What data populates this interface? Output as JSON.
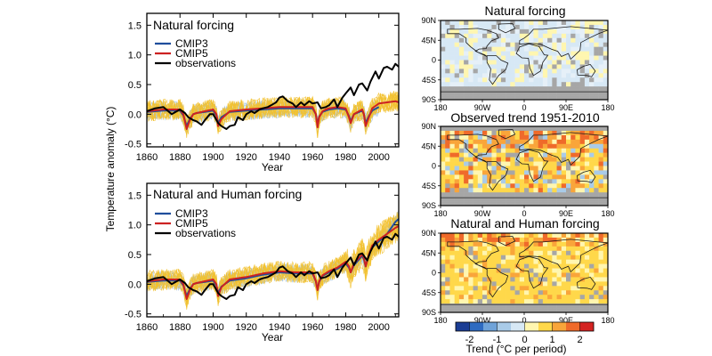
{
  "figure": {
    "colors": {
      "cmip3": "#1f4e9c",
      "cmip5": "#cc2222",
      "observations": "#000000",
      "cmip3_spread": "#a9c8e6",
      "cmip5_spread": "#f2c12e",
      "land_missing": "#a6a6a6",
      "ocean_missing": "#ffffff"
    }
  },
  "chart_data": [
    {
      "type": "line",
      "id": "natural",
      "title": "Natural forcing",
      "xlabel": "Year",
      "ylabel": "Temperature anomaly (°C)",
      "xlim": [
        1860,
        2012
      ],
      "ylim": [
        -0.55,
        1.7
      ],
      "xticks": [
        1860,
        1880,
        1900,
        1920,
        1940,
        1960,
        1980,
        2000
      ],
      "yticks": [
        -0.5,
        0.0,
        0.5,
        1.0,
        1.5
      ],
      "legend": [
        "CMIP3",
        "CMIP5",
        "observations"
      ],
      "series": [
        {
          "name": "observations",
          "x": [
            1860,
            1865,
            1870,
            1875,
            1880,
            1883,
            1885,
            1888,
            1890,
            1893,
            1895,
            1898,
            1900,
            1903,
            1905,
            1908,
            1910,
            1913,
            1915,
            1918,
            1920,
            1923,
            1925,
            1928,
            1930,
            1933,
            1935,
            1938,
            1940,
            1942,
            1945,
            1948,
            1950,
            1953,
            1955,
            1958,
            1960,
            1963,
            1965,
            1968,
            1970,
            1973,
            1975,
            1978,
            1980,
            1983,
            1985,
            1988,
            1990,
            1993,
            1995,
            1998,
            2000,
            2003,
            2005,
            2008,
            2010,
            2012
          ],
          "values": [
            0.05,
            0.1,
            0.12,
            0.0,
            0.08,
            0.02,
            -0.05,
            -0.1,
            -0.12,
            -0.18,
            -0.1,
            0.0,
            0.0,
            -0.15,
            -0.2,
            -0.25,
            -0.2,
            -0.18,
            -0.05,
            -0.1,
            0.0,
            0.05,
            0.02,
            0.08,
            0.1,
            0.12,
            0.15,
            0.2,
            0.28,
            0.3,
            0.22,
            0.18,
            0.12,
            0.2,
            0.15,
            0.22,
            0.18,
            0.2,
            0.1,
            0.12,
            0.15,
            0.25,
            0.12,
            0.28,
            0.35,
            0.45,
            0.32,
            0.5,
            0.52,
            0.4,
            0.55,
            0.72,
            0.6,
            0.78,
            0.8,
            0.75,
            0.85,
            0.8
          ]
        },
        {
          "name": "CMIP5",
          "x": [
            1860,
            1870,
            1880,
            1882,
            1884,
            1886,
            1888,
            1890,
            1895,
            1900,
            1902,
            1903,
            1905,
            1910,
            1920,
            1930,
            1940,
            1950,
            1960,
            1962,
            1963,
            1964,
            1966,
            1968,
            1970,
            1975,
            1980,
            1982,
            1983,
            1985,
            1990,
            1991,
            1992,
            1994,
            1996,
            2000,
            2005,
            2010,
            2012
          ],
          "values": [
            0.05,
            0.08,
            0.08,
            0.0,
            -0.25,
            -0.1,
            0.0,
            0.02,
            0.05,
            0.08,
            0.0,
            -0.2,
            -0.08,
            0.05,
            0.08,
            0.1,
            0.12,
            0.12,
            0.12,
            0.0,
            -0.22,
            -0.05,
            0.05,
            0.08,
            0.1,
            0.12,
            0.1,
            -0.05,
            -0.15,
            0.0,
            0.08,
            0.0,
            -0.2,
            -0.05,
            0.1,
            0.18,
            0.2,
            0.22,
            0.2
          ]
        },
        {
          "name": "CMIP3",
          "x": [
            1860,
            1870,
            1880,
            1882,
            1884,
            1886,
            1888,
            1890,
            1895,
            1900,
            1902,
            1903,
            1905,
            1910,
            1920,
            1930,
            1940,
            1950,
            1960,
            1962,
            1963,
            1964,
            1966,
            1968,
            1970,
            1975,
            1980,
            1982,
            1983,
            1985,
            1990,
            1991,
            1992,
            1994,
            1996,
            2000
          ],
          "values": [
            0.04,
            0.06,
            0.06,
            -0.02,
            -0.2,
            -0.08,
            0.0,
            0.02,
            0.04,
            0.06,
            -0.02,
            -0.15,
            -0.05,
            0.04,
            0.06,
            0.08,
            0.1,
            0.1,
            0.1,
            0.0,
            -0.18,
            -0.04,
            0.04,
            0.06,
            0.08,
            0.1,
            0.08,
            -0.03,
            -0.12,
            0.0,
            0.06,
            0.0,
            -0.15,
            -0.03,
            0.06,
            0.12
          ]
        }
      ]
    },
    {
      "type": "line",
      "id": "natural_human",
      "title": "Natural and Human forcing",
      "xlabel": "Year",
      "ylabel": "Temperature anomaly (°C)",
      "xlim": [
        1860,
        2012
      ],
      "ylim": [
        -0.55,
        1.7
      ],
      "xticks": [
        1860,
        1880,
        1900,
        1920,
        1940,
        1960,
        1980,
        2000
      ],
      "yticks": [
        -0.5,
        0.0,
        0.5,
        1.0,
        1.5
      ],
      "legend": [
        "CMIP3",
        "CMIP5",
        "observations"
      ],
      "series": [
        {
          "name": "observations",
          "x": [
            1860,
            1865,
            1870,
            1875,
            1880,
            1883,
            1885,
            1888,
            1890,
            1893,
            1895,
            1898,
            1900,
            1903,
            1905,
            1908,
            1910,
            1913,
            1915,
            1918,
            1920,
            1923,
            1925,
            1928,
            1930,
            1933,
            1935,
            1938,
            1940,
            1942,
            1945,
            1948,
            1950,
            1953,
            1955,
            1958,
            1960,
            1963,
            1965,
            1968,
            1970,
            1973,
            1975,
            1978,
            1980,
            1983,
            1985,
            1988,
            1990,
            1993,
            1995,
            1998,
            2000,
            2003,
            2005,
            2008,
            2010,
            2012
          ],
          "values": [
            0.05,
            0.1,
            0.12,
            0.0,
            0.08,
            0.02,
            -0.05,
            -0.1,
            -0.12,
            -0.18,
            -0.1,
            0.0,
            0.0,
            -0.15,
            -0.2,
            -0.25,
            -0.2,
            -0.18,
            -0.05,
            -0.1,
            0.0,
            0.05,
            0.02,
            0.08,
            0.1,
            0.12,
            0.15,
            0.2,
            0.28,
            0.3,
            0.22,
            0.18,
            0.12,
            0.2,
            0.15,
            0.22,
            0.18,
            0.2,
            0.1,
            0.12,
            0.15,
            0.25,
            0.12,
            0.28,
            0.35,
            0.45,
            0.32,
            0.5,
            0.52,
            0.4,
            0.55,
            0.72,
            0.6,
            0.78,
            0.8,
            0.75,
            0.85,
            0.8
          ]
        },
        {
          "name": "CMIP5",
          "x": [
            1860,
            1870,
            1880,
            1882,
            1884,
            1886,
            1888,
            1890,
            1895,
            1900,
            1902,
            1903,
            1905,
            1910,
            1920,
            1930,
            1940,
            1950,
            1960,
            1962,
            1963,
            1964,
            1966,
            1970,
            1975,
            1980,
            1982,
            1983,
            1985,
            1990,
            1991,
            1992,
            1994,
            1996,
            2000,
            2005,
            2010,
            2012
          ],
          "values": [
            0.05,
            0.08,
            0.08,
            0.0,
            -0.25,
            -0.1,
            0.0,
            0.02,
            0.05,
            0.08,
            0.0,
            -0.2,
            -0.05,
            0.08,
            0.12,
            0.18,
            0.22,
            0.2,
            0.2,
            0.05,
            -0.1,
            0.05,
            0.15,
            0.22,
            0.28,
            0.38,
            0.3,
            0.2,
            0.35,
            0.5,
            0.45,
            0.3,
            0.5,
            0.65,
            0.75,
            0.85,
            0.95,
            0.98
          ]
        },
        {
          "name": "CMIP3",
          "x": [
            1860,
            1870,
            1880,
            1882,
            1884,
            1886,
            1888,
            1890,
            1895,
            1900,
            1902,
            1903,
            1905,
            1910,
            1920,
            1930,
            1940,
            1950,
            1960,
            1962,
            1963,
            1964,
            1966,
            1970,
            1975,
            1980,
            1982,
            1983,
            1985,
            1990,
            1991,
            1992,
            1994,
            1996,
            2000,
            2005,
            2010,
            2012
          ],
          "values": [
            0.04,
            0.06,
            0.06,
            -0.02,
            -0.2,
            -0.08,
            0.0,
            0.02,
            0.04,
            0.06,
            -0.02,
            -0.15,
            -0.04,
            0.06,
            0.1,
            0.16,
            0.2,
            0.18,
            0.18,
            0.05,
            -0.08,
            0.04,
            0.14,
            0.2,
            0.26,
            0.35,
            0.28,
            0.2,
            0.32,
            0.48,
            0.42,
            0.3,
            0.5,
            0.62,
            0.72,
            0.85,
            1.05,
            1.1
          ]
        }
      ]
    },
    {
      "type": "heatmap",
      "id": "maps",
      "maps": [
        {
          "id": "natural",
          "title": "Natural forcing"
        },
        {
          "id": "observed",
          "title": "Observed trend 1951-2010"
        },
        {
          "id": "natural_human",
          "title": "Natural and Human forcing"
        }
      ],
      "lat_labels": [
        "90N",
        "45N",
        "0",
        "45S",
        "90S"
      ],
      "lon_labels": [
        "180",
        "90W",
        "0",
        "90E",
        "180"
      ],
      "colorbar": {
        "title": "Trend (°C per period)",
        "tick_labels": [
          "-2",
          "-1",
          "0",
          "1",
          "2"
        ],
        "colors": [
          "#1b3d94",
          "#2e6bc1",
          "#6fa3d9",
          "#a9cbe8",
          "#d7e8f5",
          "#fff6b0",
          "#ffd84a",
          "#f9a53a",
          "#ef6a2a",
          "#d42322"
        ]
      }
    }
  ]
}
